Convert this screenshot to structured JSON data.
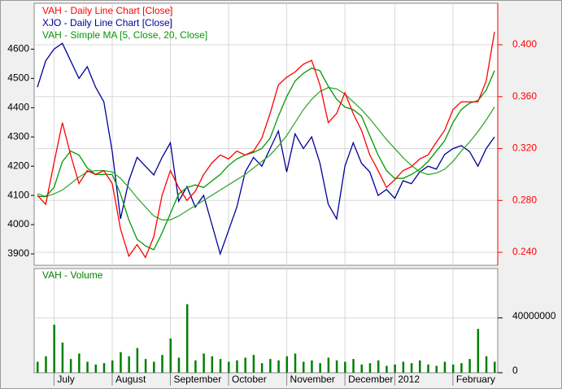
{
  "chart_data": {
    "type": "stock",
    "series": [
      {
        "name": "VAH - Daily Line Chart [Close]",
        "color": "#ff0000",
        "axis": "y2",
        "values": [
          0.284,
          0.277,
          0.309,
          0.34,
          0.315,
          0.293,
          0.303,
          0.3,
          0.303,
          0.293,
          0.258,
          0.237,
          0.246,
          0.236,
          0.252,
          0.284,
          0.303,
          0.29,
          0.28,
          0.287,
          0.3,
          0.309,
          0.315,
          0.312,
          0.318,
          0.315,
          0.318,
          0.328,
          0.347,
          0.369,
          0.375,
          0.379,
          0.385,
          0.388,
          0.369,
          0.34,
          0.347,
          0.363,
          0.347,
          0.334,
          0.315,
          0.303,
          0.29,
          0.296,
          0.303,
          0.306,
          0.312,
          0.315,
          0.325,
          0.334,
          0.35,
          0.356,
          0.356,
          0.356,
          0.372,
          0.41
        ]
      },
      {
        "name": "XJO - Daily Line Chart [Close]",
        "color": "#000099",
        "values": [
          4470,
          4560,
          4600,
          4620,
          4560,
          4500,
          4540,
          4470,
          4420,
          4250,
          4020,
          4150,
          4230,
          4200,
          4170,
          4230,
          4280,
          4080,
          4130,
          4060,
          4100,
          4000,
          3900,
          3980,
          4060,
          4180,
          4230,
          4200,
          4260,
          4320,
          4180,
          4310,
          4260,
          4300,
          4210,
          4070,
          4020,
          4200,
          4280,
          4210,
          4180,
          4100,
          4120,
          4090,
          4150,
          4140,
          4180,
          4200,
          4190,
          4240,
          4260,
          4270,
          4250,
          4200,
          4260,
          4300
        ]
      },
      {
        "name": "VAH - Simple MA [5, Close, 20, Close]",
        "color": "#009900",
        "axis": "y2",
        "values": [
          0.283,
          0.283,
          0.29,
          0.31,
          0.318,
          0.315,
          0.305,
          0.3,
          0.3,
          0.3,
          0.285,
          0.265,
          0.25,
          0.245,
          0.242,
          0.255,
          0.27,
          0.285,
          0.29,
          0.292,
          0.29,
          0.295,
          0.3,
          0.307,
          0.312,
          0.315,
          0.317,
          0.32,
          0.328,
          0.345,
          0.36,
          0.372,
          0.378,
          0.382,
          0.38,
          0.368,
          0.358,
          0.352,
          0.35,
          0.345,
          0.33,
          0.315,
          0.303,
          0.297,
          0.297,
          0.3,
          0.304,
          0.31,
          0.318,
          0.326,
          0.34,
          0.35,
          0.355,
          0.357,
          0.365,
          0.38
        ]
      },
      {
        "color": "#33aa33",
        "axis": "y2",
        "values": [
          0.285,
          0.283,
          0.285,
          0.288,
          0.293,
          0.298,
          0.302,
          0.303,
          0.303,
          0.302,
          0.297,
          0.29,
          0.282,
          0.275,
          0.268,
          0.265,
          0.265,
          0.268,
          0.272,
          0.276,
          0.28,
          0.284,
          0.288,
          0.292,
          0.296,
          0.3,
          0.305,
          0.31,
          0.315,
          0.322,
          0.33,
          0.34,
          0.35,
          0.358,
          0.364,
          0.367,
          0.366,
          0.362,
          0.356,
          0.35,
          0.343,
          0.335,
          0.327,
          0.32,
          0.313,
          0.307,
          0.302,
          0.3,
          0.301,
          0.304,
          0.31,
          0.318,
          0.325,
          0.333,
          0.342,
          0.352
        ]
      }
    ],
    "xlim": [
      0,
      55
    ],
    "xticks": [
      {
        "value": 2,
        "label": "July"
      },
      {
        "value": 9,
        "label": "August"
      },
      {
        "value": 16,
        "label": "September"
      },
      {
        "value": 23,
        "label": "October"
      },
      {
        "value": 30,
        "label": "November"
      },
      {
        "value": 37,
        "label": "December"
      },
      {
        "value": 43,
        "label": "2012"
      },
      {
        "value": 50,
        "label": "February"
      }
    ],
    "ylim": [
      3861,
      4757
    ],
    "yticks": [
      3900,
      4000,
      4100,
      4200,
      4300,
      4400,
      4500,
      4600
    ],
    "y2lim": [
      0.23,
      0.432
    ],
    "y2ticks": [
      {
        "value": 0.24,
        "label": "0.240"
      },
      {
        "value": 0.28,
        "label": "0.280"
      },
      {
        "value": 0.32,
        "label": "0.320"
      },
      {
        "value": 0.36,
        "label": "0.360"
      },
      {
        "value": 0.4,
        "label": "0.400"
      }
    ],
    "grid": true,
    "volume": {
      "name": "VAH - Volume",
      "color": "#008000",
      "ylim": [
        0,
        76000000
      ],
      "yticks": [
        0,
        40000000
      ],
      "values": [
        8000000,
        12000000,
        35000000,
        22000000,
        10000000,
        14000000,
        8000000,
        6000000,
        7000000,
        9000000,
        15000000,
        12000000,
        18000000,
        10000000,
        8000000,
        13000000,
        25000000,
        11000000,
        50000000,
        9000000,
        14000000,
        12000000,
        10000000,
        8000000,
        9000000,
        11000000,
        13000000,
        7000000,
        10000000,
        9000000,
        12000000,
        14000000,
        8000000,
        9000000,
        7000000,
        11000000,
        9000000,
        8000000,
        10000000,
        6000000,
        7000000,
        9000000,
        5000000,
        6000000,
        8000000,
        7000000,
        9000000,
        6000000,
        5000000,
        8000000,
        6000000,
        7000000,
        10000000,
        32000000,
        12000000,
        8000000
      ]
    }
  }
}
